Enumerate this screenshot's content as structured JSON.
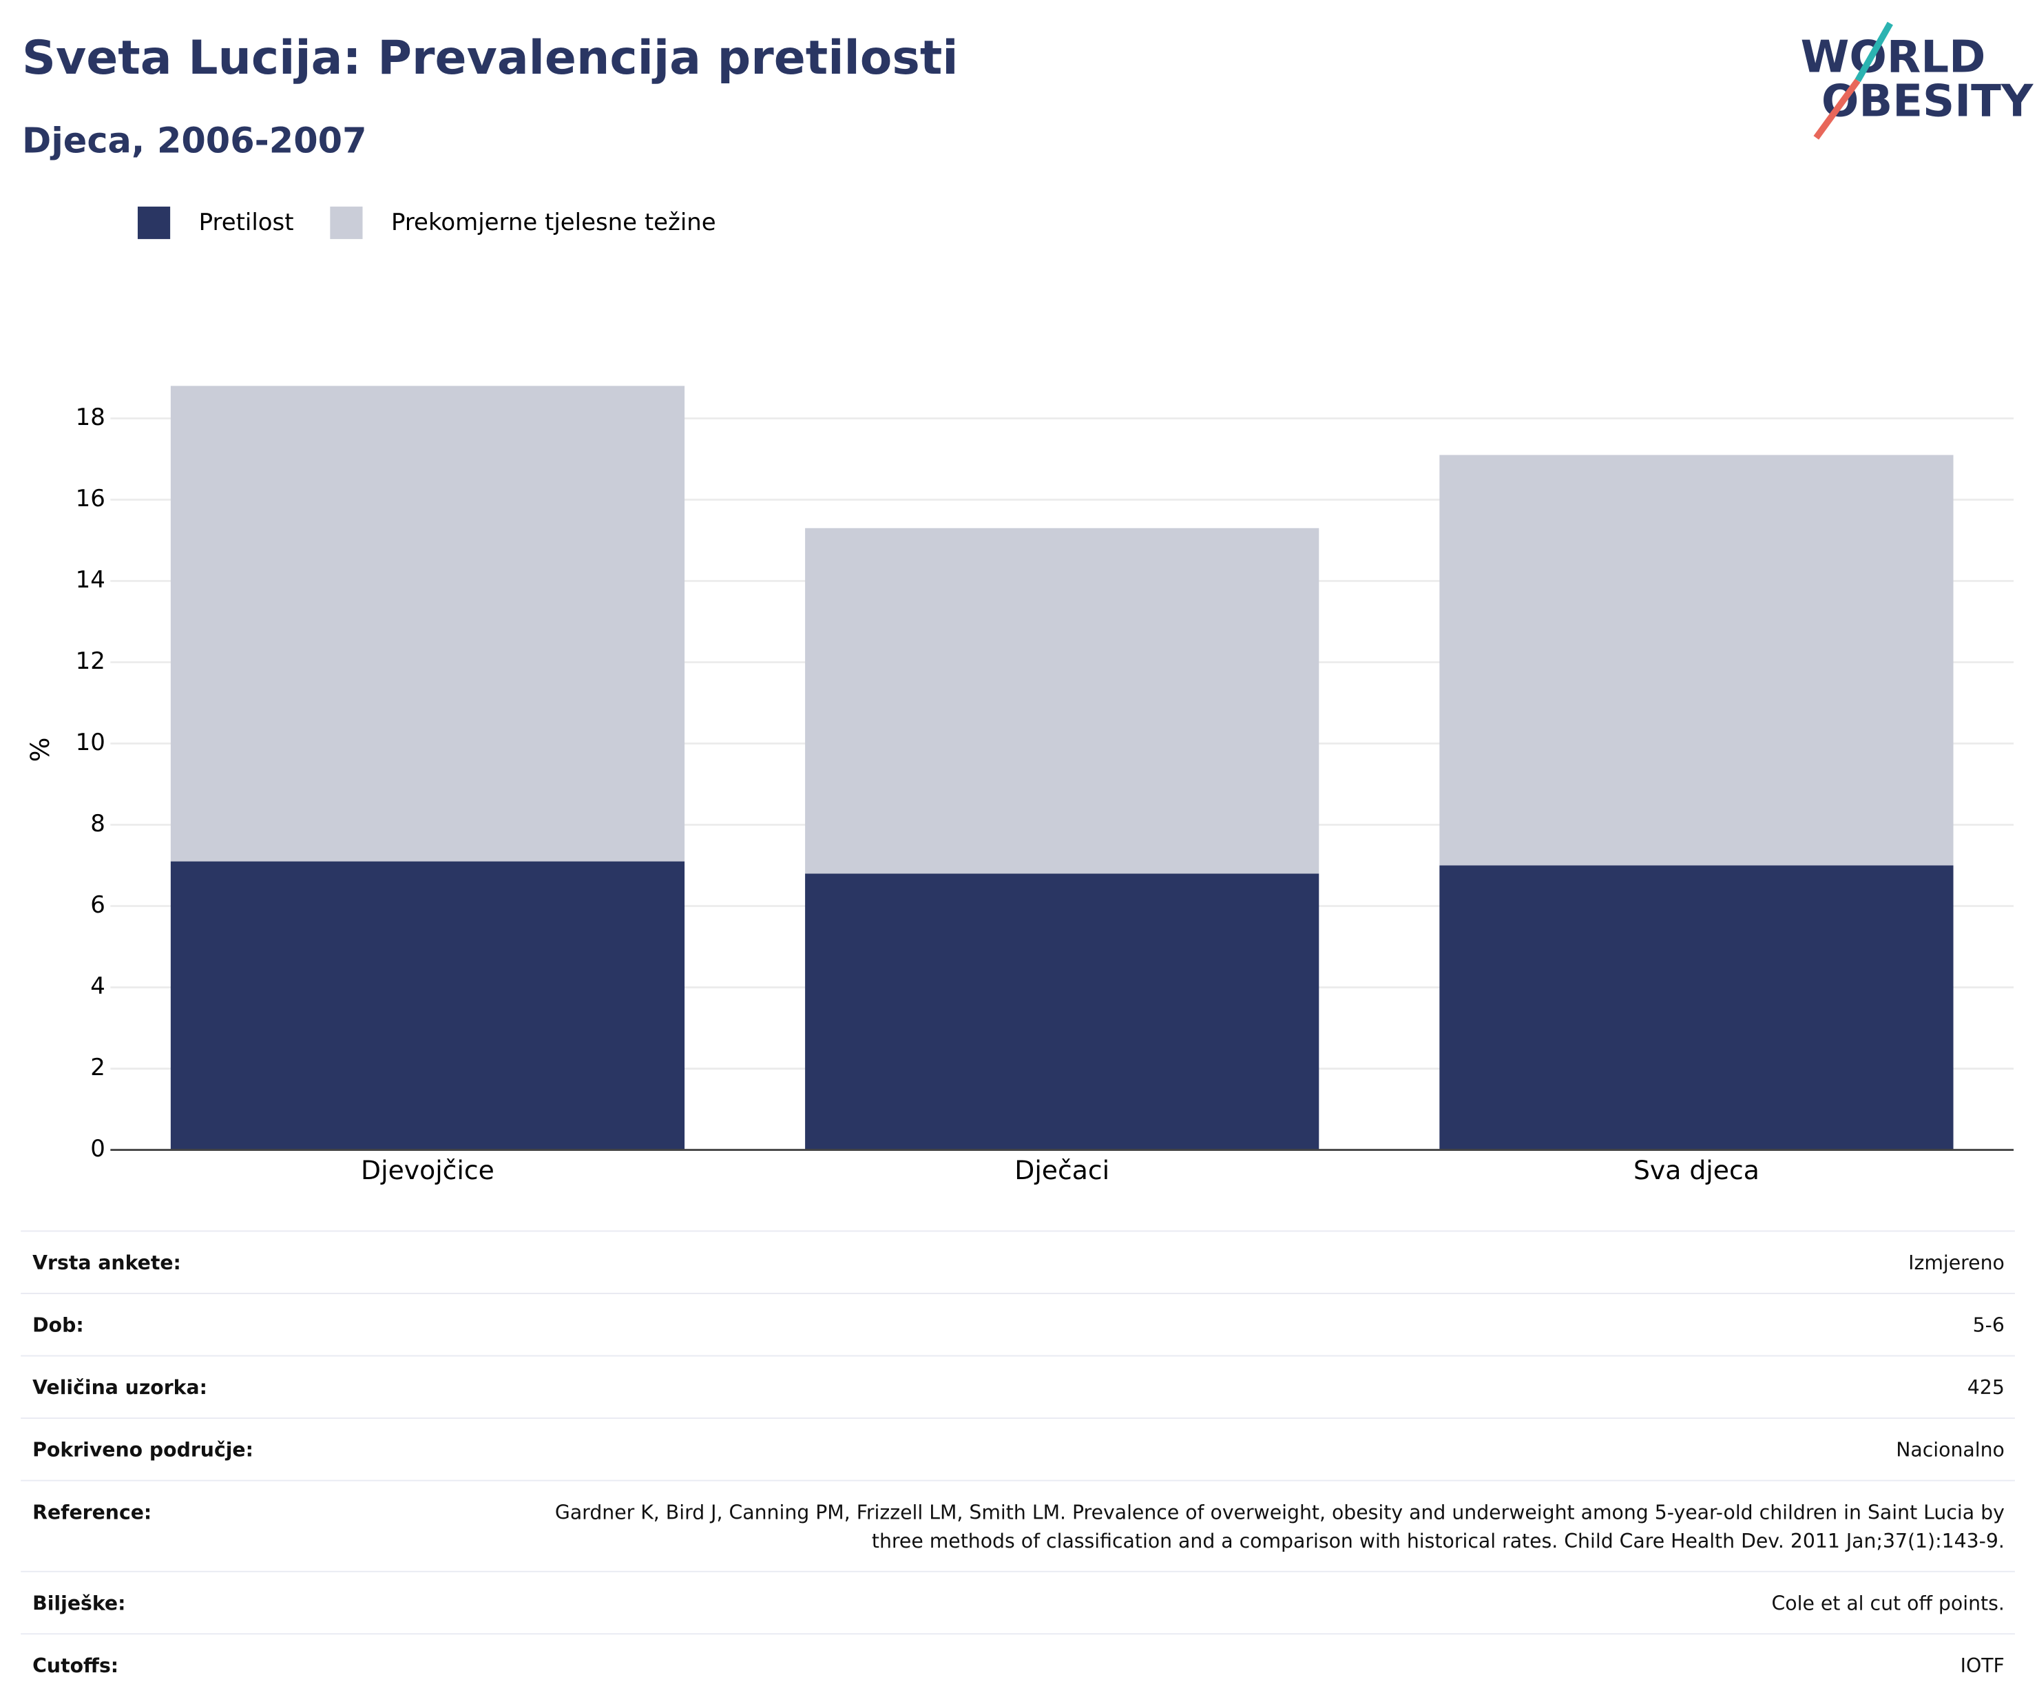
{
  "title": "Sveta Lucija: Prevalencija pretilosti",
  "subtitle": "Djeca, 2006-2007",
  "logo": [
    "WORLD",
    "OBESITY"
  ],
  "chart_data": {
    "type": "stacked_bar",
    "y_label": "%",
    "categories": [
      "Djevojčice",
      "Dječaci",
      "Sva djeca"
    ],
    "series": [
      {
        "name": "Pretilost",
        "color": "#2a3663",
        "values": [
          7.1,
          6.8,
          7.0
        ]
      },
      {
        "name": "Prekomjerne tjelesne težine",
        "color": "#cacdd8",
        "values": [
          11.7,
          8.5,
          10.1
        ]
      }
    ],
    "ylim": [
      0,
      18.8
    ],
    "yticks": [
      0,
      2,
      4,
      6,
      8,
      10,
      12,
      14,
      16,
      18
    ],
    "grid": true
  },
  "table": {
    "rows": [
      [
        "Vrsta ankete:",
        "Izmjereno"
      ],
      [
        "Dob:",
        "5-6"
      ],
      [
        "Veličina uzorka:",
        "425"
      ],
      [
        "Pokriveno područje:",
        "Nacionalno"
      ],
      [
        "Reference:",
        "Gardner K, Bird J, Canning PM, Frizzell LM, Smith LM. Prevalence of overweight, obesity and underweight among 5-year-old children in Saint Lucia by three methods of classification and a comparison with historical rates. Child Care Health Dev. 2011 Jan;37(1):143-9."
      ],
      [
        "Bilješke:",
        "Cole et al cut off points."
      ],
      [
        "Cutoffs:",
        "IOTF"
      ]
    ]
  }
}
